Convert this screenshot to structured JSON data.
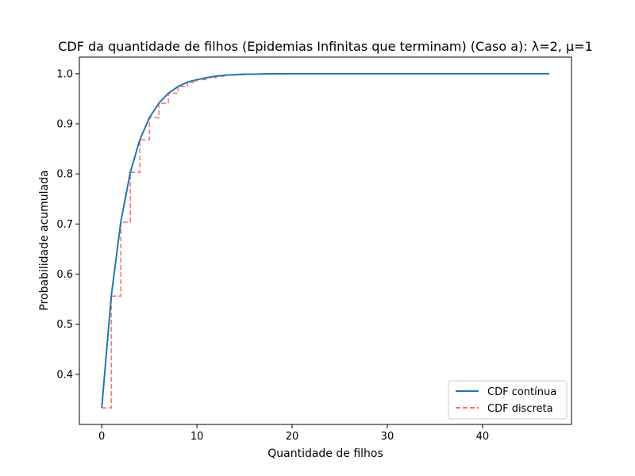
{
  "chart_data": {
    "type": "line",
    "title": "CDF da quantidade de filhos (Epidemias Infinitas que terminam) (Caso a): λ=2, μ=1",
    "xlabel": "Quantidade de filhos",
    "ylabel": "Probabilidade acumulada",
    "xlim": [
      -2.35,
      49.35
    ],
    "ylim": [
      0.3,
      1.033
    ],
    "xticks": [
      0,
      10,
      20,
      30,
      40
    ],
    "yticks": [
      0.4,
      0.5,
      0.6,
      0.7,
      0.8,
      0.9,
      1.0
    ],
    "xtick_labels": [
      "0",
      "10",
      "20",
      "30",
      "40"
    ],
    "ytick_labels": [
      "0.4",
      "0.5",
      "0.6",
      "0.7",
      "0.8",
      "0.9",
      "1.0"
    ],
    "grid": false,
    "legend_position": "lower-right",
    "x": [
      0,
      1,
      2,
      3,
      4,
      5,
      6,
      7,
      8,
      9,
      10,
      11,
      12,
      13,
      14,
      15,
      16,
      17,
      18,
      19,
      20,
      21,
      22,
      23,
      24,
      25,
      26,
      27,
      28,
      29,
      30,
      31,
      32,
      33,
      34,
      35,
      36,
      37,
      38,
      39,
      40,
      41,
      42,
      43,
      44,
      45,
      46,
      47
    ],
    "series": [
      {
        "name": "CDF contínua",
        "color": "#1f77b4",
        "style": "solid",
        "values": [
          0.333,
          0.556,
          0.704,
          0.803,
          0.868,
          0.912,
          0.941,
          0.961,
          0.974,
          0.983,
          0.988,
          0.992,
          0.995,
          0.997,
          0.998,
          0.999,
          0.999,
          0.9995,
          0.9997,
          0.9998,
          0.9999,
          1,
          1,
          1,
          1,
          1,
          1,
          1,
          1,
          1,
          1,
          1,
          1,
          1,
          1,
          1,
          1,
          1,
          1,
          1,
          1,
          1,
          1,
          1,
          1,
          1,
          1,
          1
        ]
      },
      {
        "name": "CDF discreta",
        "color": "#ff6b6b",
        "style": "dashed-step",
        "values": [
          0.333,
          0.556,
          0.704,
          0.803,
          0.868,
          0.912,
          0.941,
          0.961,
          0.974,
          0.983,
          0.988,
          0.992,
          0.995,
          0.997,
          0.998,
          0.999,
          0.999,
          0.9995,
          0.9997,
          0.9998,
          0.9999,
          1,
          1,
          1,
          1,
          1,
          1,
          1,
          1,
          1,
          1,
          1,
          1,
          1,
          1,
          1,
          1,
          1,
          1,
          1,
          1,
          1,
          1,
          1,
          1,
          1,
          1,
          1
        ]
      }
    ]
  }
}
